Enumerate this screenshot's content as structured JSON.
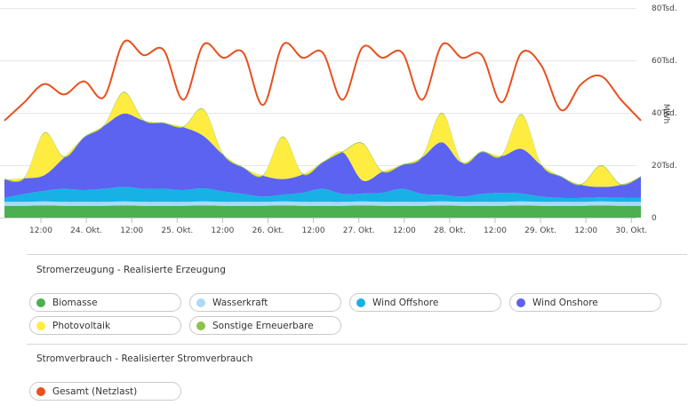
{
  "chart_data": {
    "type": "area",
    "ylabel": "MWh",
    "ylim": [
      0,
      80000
    ],
    "y_ticks": [
      "0",
      "20Tsd.",
      "40Tsd.",
      "60Tsd.",
      "80Tsd."
    ],
    "x_ticks": [
      "12:00",
      "24. Okt.",
      "12:00",
      "25. Okt.",
      "12:00",
      "26. Okt.",
      "12:00",
      "27. Okt.",
      "12:00",
      "28. Okt.",
      "12:00",
      "29. Okt.",
      "12:00",
      "30. Okt."
    ],
    "x": [
      "23. Okt. 00:00",
      "23. Okt. 06:00",
      "23. Okt. 12:00",
      "23. Okt. 18:00",
      "24. Okt. 00:00",
      "24. Okt. 06:00",
      "24. Okt. 12:00",
      "24. Okt. 18:00",
      "25. Okt. 00:00",
      "25. Okt. 06:00",
      "25. Okt. 12:00",
      "25. Okt. 18:00",
      "26. Okt. 00:00",
      "26. Okt. 06:00",
      "26. Okt. 12:00",
      "26. Okt. 18:00",
      "27. Okt. 00:00",
      "27. Okt. 06:00",
      "27. Okt. 12:00",
      "27. Okt. 18:00",
      "28. Okt. 00:00",
      "28. Okt. 06:00",
      "28. Okt. 12:00",
      "28. Okt. 18:00",
      "29. Okt. 00:00",
      "29. Okt. 06:00",
      "29. Okt. 12:00",
      "29. Okt. 18:00",
      "30. Okt. 00:00",
      "30. Okt. 06:00",
      "30. Okt. 12:00",
      "30. Okt. 18:00",
      "31. Okt. 00:00"
    ],
    "series": [
      {
        "name": "Biomasse",
        "color": "#4caf50",
        "kind": "stack",
        "values": [
          4500,
          4500,
          4600,
          4500,
          4500,
          4500,
          4600,
          4500,
          4500,
          4500,
          4600,
          4500,
          4500,
          4500,
          4600,
          4500,
          4500,
          4500,
          4600,
          4500,
          4500,
          4500,
          4600,
          4500,
          4500,
          4500,
          4600,
          4500,
          4500,
          4500,
          4600,
          4500,
          4500
        ]
      },
      {
        "name": "Wasserkraft",
        "color": "#a9dbf5",
        "kind": "stack",
        "values": [
          1500,
          1500,
          1600,
          1500,
          1500,
          1500,
          1600,
          1500,
          1500,
          1500,
          1600,
          1500,
          1500,
          1500,
          1600,
          1500,
          1500,
          1500,
          1600,
          1500,
          1500,
          1500,
          1600,
          1500,
          1500,
          1500,
          1600,
          1500,
          1500,
          1500,
          1600,
          1500,
          1500
        ]
      },
      {
        "name": "Wind Offshore",
        "color": "#17b1e6",
        "kind": "stack",
        "values": [
          1500,
          3000,
          4000,
          5000,
          4500,
          5000,
          5500,
          5000,
          5000,
          4500,
          5000,
          4000,
          3000,
          2000,
          2500,
          3500,
          5000,
          3000,
          3000,
          3500,
          5000,
          3000,
          2500,
          2000,
          3000,
          3500,
          3000,
          2000,
          1500,
          1500,
          1500,
          1500,
          1500
        ]
      },
      {
        "name": "Wind Onshore",
        "color": "#5b63f0",
        "kind": "stack",
        "values": [
          7000,
          6000,
          6000,
          12000,
          20000,
          24000,
          28000,
          26000,
          25000,
          24000,
          20000,
          14000,
          10000,
          8000,
          6000,
          7000,
          10000,
          16000,
          5000,
          8000,
          9000,
          14000,
          20000,
          13000,
          16000,
          14000,
          17000,
          12000,
          8000,
          5000,
          4000,
          5000,
          8000
        ]
      },
      {
        "name": "Photovoltaik",
        "color": "#ffec40",
        "kind": "stack",
        "values": [
          0,
          0,
          16000,
          0,
          0,
          0,
          8000,
          0,
          0,
          0,
          10000,
          0,
          0,
          0,
          16000,
          0,
          0,
          0,
          14000,
          0,
          0,
          0,
          11000,
          0,
          0,
          0,
          13000,
          0,
          0,
          0,
          8000,
          0,
          0
        ]
      },
      {
        "name": "Sonstige Erneuerbare",
        "color": "#8bc34a",
        "kind": "stack",
        "values": [
          300,
          300,
          300,
          300,
          300,
          300,
          300,
          300,
          300,
          300,
          300,
          300,
          300,
          300,
          300,
          300,
          300,
          300,
          300,
          300,
          300,
          300,
          300,
          300,
          300,
          300,
          300,
          300,
          300,
          300,
          300,
          300,
          300
        ]
      },
      {
        "name": "Gesamt (Netzlast)",
        "color": "#e8501e",
        "kind": "line",
        "values": [
          37000,
          44000,
          51000,
          47000,
          52000,
          46000,
          67000,
          62000,
          64000,
          45000,
          66000,
          61000,
          63000,
          43000,
          66000,
          61000,
          63000,
          45000,
          65000,
          61000,
          63000,
          45000,
          66000,
          61000,
          62000,
          44000,
          63000,
          58000,
          41000,
          51000,
          54000,
          45000,
          37000
        ]
      }
    ]
  },
  "sections": [
    {
      "title": "Stromerzeugung - Realisierte Erzeugung",
      "items": [
        {
          "label": "Biomasse",
          "color": "#4caf50"
        },
        {
          "label": "Wasserkraft",
          "color": "#a9dbf5"
        },
        {
          "label": "Wind Offshore",
          "color": "#17b1e6"
        },
        {
          "label": "Wind Onshore",
          "color": "#5b63f0"
        },
        {
          "label": "Photovoltaik",
          "color": "#ffec40"
        },
        {
          "label": "Sonstige Erneuerbare",
          "color": "#8bc34a"
        }
      ]
    },
    {
      "title": "Stromverbrauch - Realisierter Stromverbrauch",
      "items": [
        {
          "label": "Gesamt (Netzlast)",
          "color": "#e8501e"
        }
      ]
    }
  ]
}
